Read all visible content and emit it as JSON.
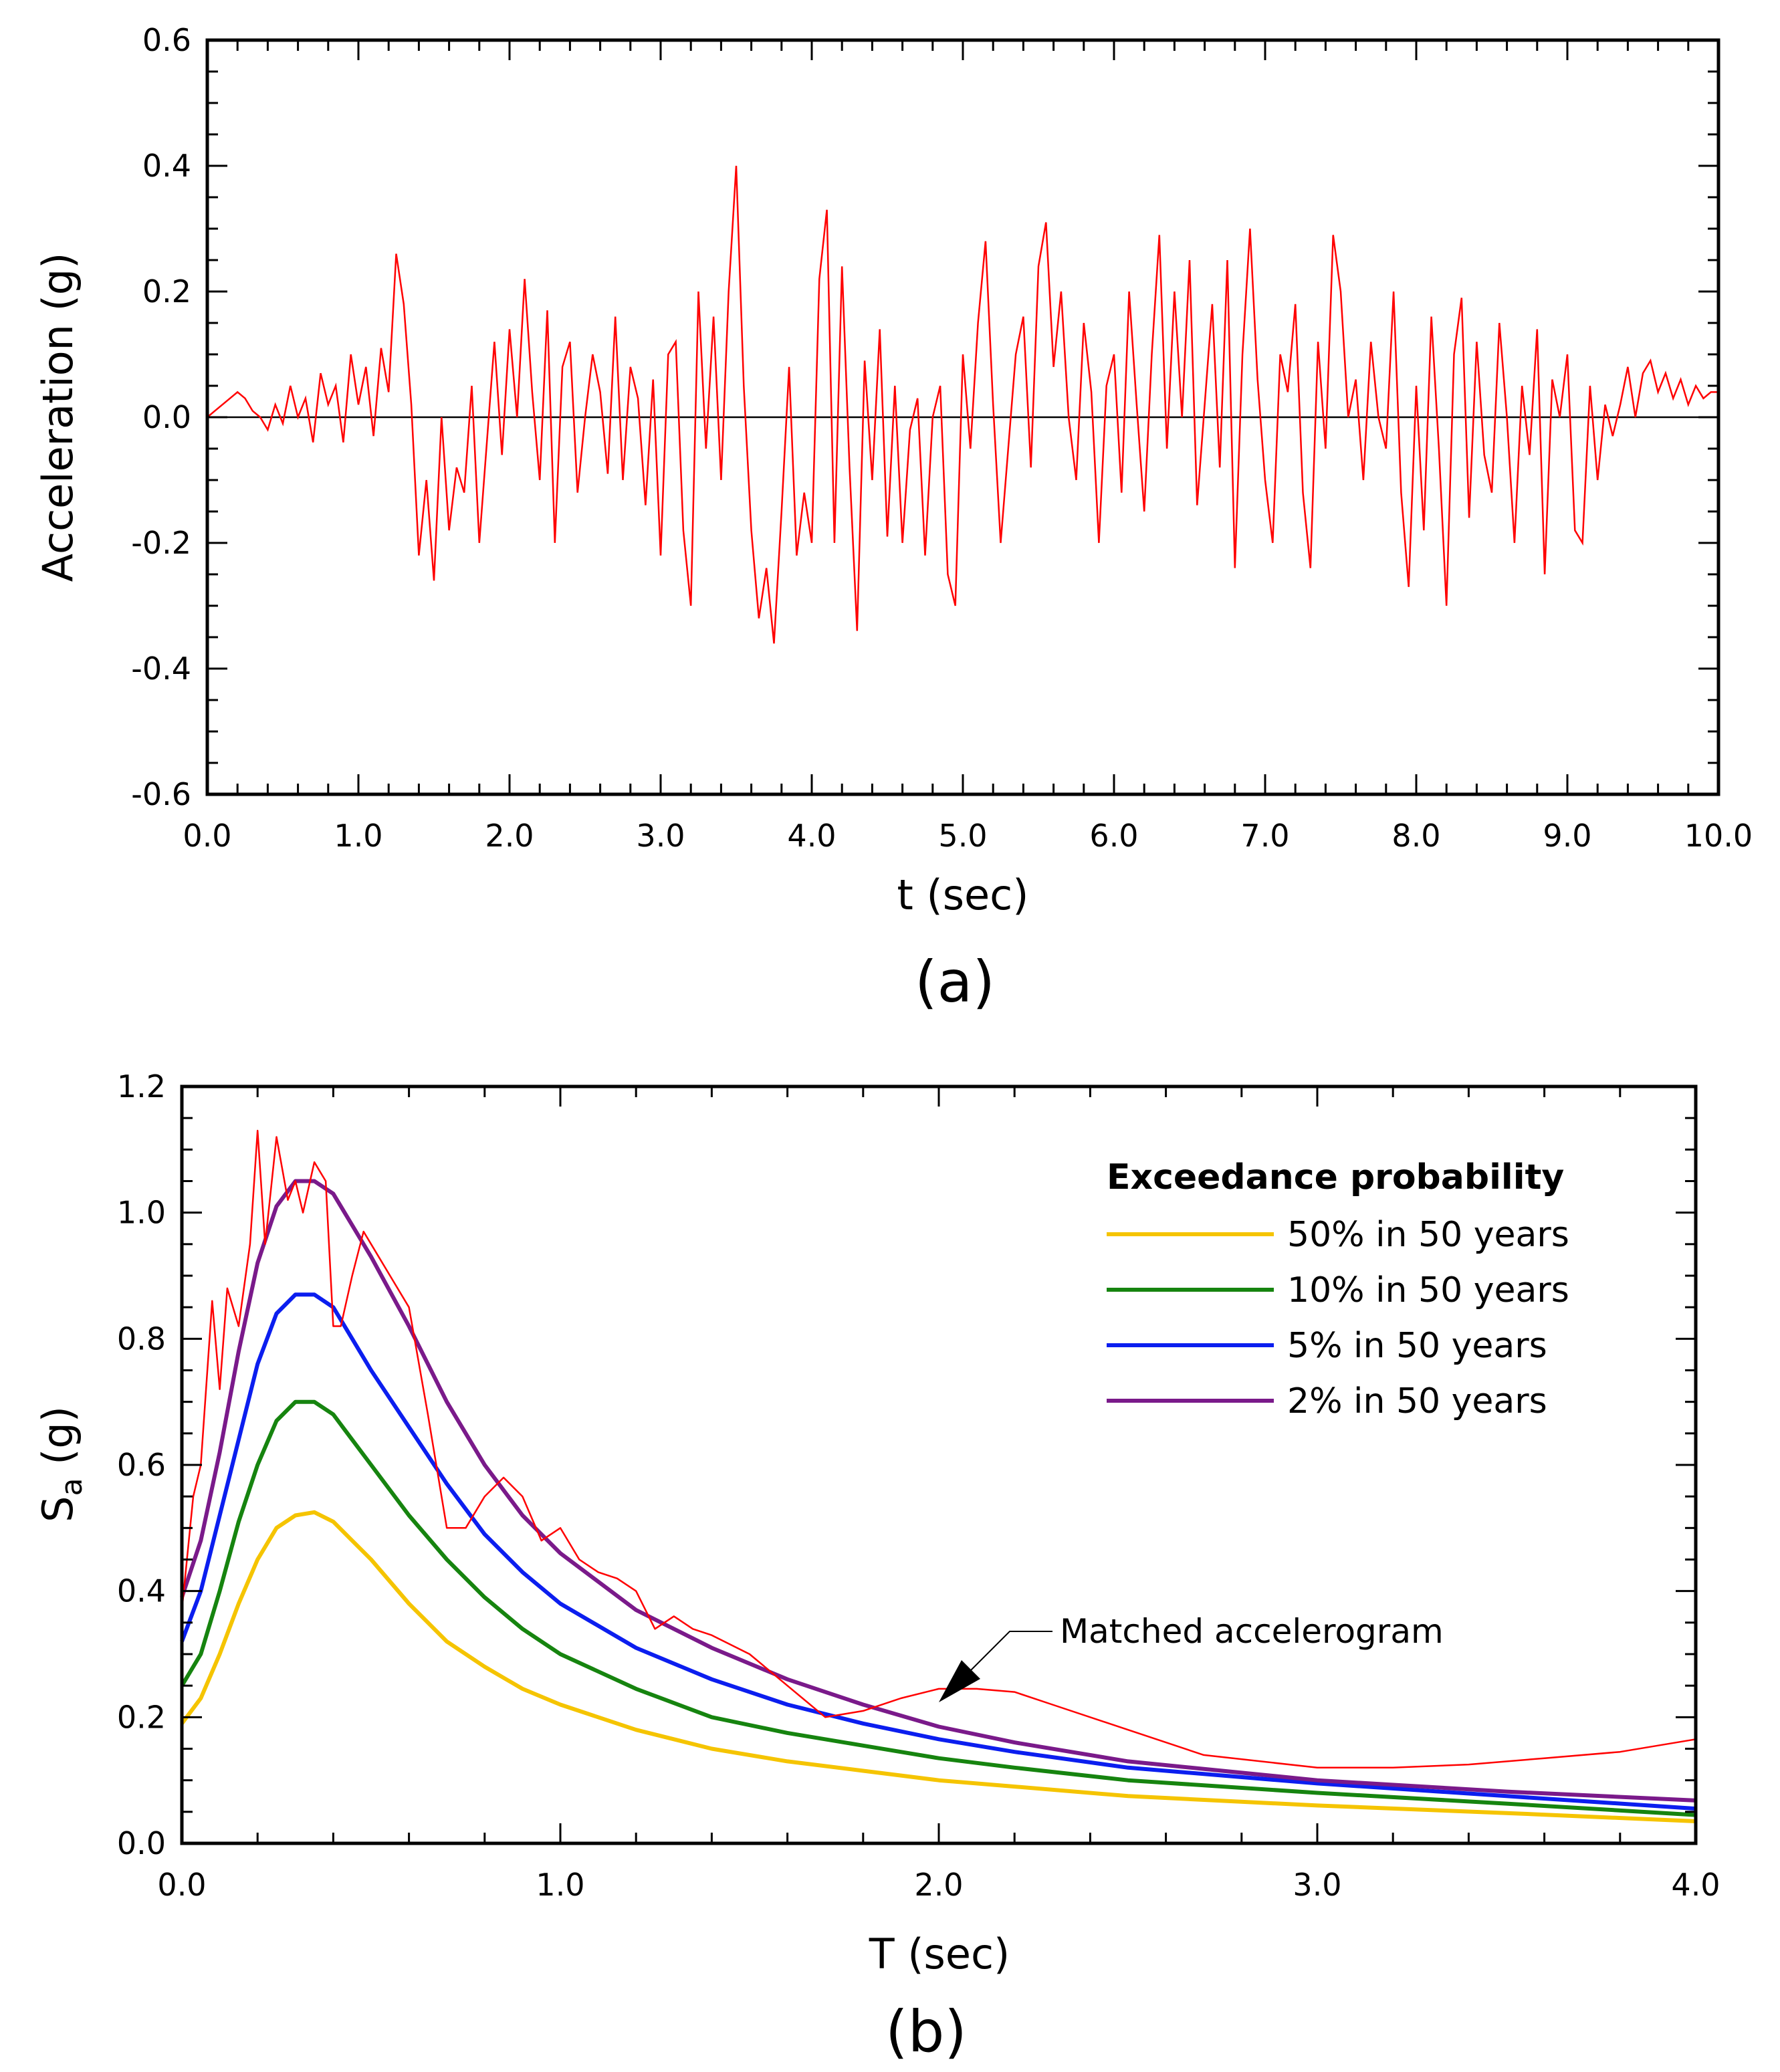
{
  "chart_data": [
    {
      "type": "line",
      "panel_label": "(a)",
      "title": "",
      "xlabel": "t (sec)",
      "ylabel": "Acceleration (g)",
      "xlim": [
        0,
        10
      ],
      "ylim": [
        -0.6,
        0.6
      ],
      "x_ticks": [
        "0.0",
        "1.0",
        "2.0",
        "3.0",
        "4.0",
        "5.0",
        "6.0",
        "7.0",
        "8.0",
        "9.0",
        "10.0"
      ],
      "y_ticks": [
        "-0.6",
        "-0.4",
        "-0.2",
        "0.0",
        "0.2",
        "0.4",
        "0.6"
      ],
      "zero_line": true,
      "series": [
        {
          "name": "Matched accelerogram",
          "color": "#ff0000",
          "x": [
            0.0,
            0.05,
            0.1,
            0.15,
            0.2,
            0.25,
            0.3,
            0.35,
            0.4,
            0.45,
            0.5,
            0.55,
            0.6,
            0.65,
            0.7,
            0.75,
            0.8,
            0.85,
            0.9,
            0.95,
            1.0,
            1.05,
            1.1,
            1.15,
            1.2,
            1.25,
            1.3,
            1.35,
            1.4,
            1.45,
            1.5,
            1.55,
            1.6,
            1.65,
            1.7,
            1.75,
            1.8,
            1.85,
            1.9,
            1.95,
            2.0,
            2.05,
            2.1,
            2.15,
            2.2,
            2.25,
            2.3,
            2.35,
            2.4,
            2.45,
            2.5,
            2.55,
            2.6,
            2.65,
            2.7,
            2.75,
            2.8,
            2.85,
            2.9,
            2.95,
            3.0,
            3.05,
            3.1,
            3.15,
            3.2,
            3.25,
            3.3,
            3.35,
            3.4,
            3.45,
            3.5,
            3.55,
            3.6,
            3.65,
            3.7,
            3.75,
            3.8,
            3.85,
            3.9,
            3.95,
            4.0,
            4.05,
            4.1,
            4.15,
            4.2,
            4.25,
            4.3,
            4.35,
            4.4,
            4.45,
            4.5,
            4.55,
            4.6,
            4.65,
            4.7,
            4.75,
            4.8,
            4.85,
            4.9,
            4.95,
            5.0,
            5.05,
            5.1,
            5.15,
            5.2,
            5.25,
            5.3,
            5.35,
            5.4,
            5.45,
            5.5,
            5.55,
            5.6,
            5.65,
            5.7,
            5.75,
            5.8,
            5.85,
            5.9,
            5.95,
            6.0,
            6.05,
            6.1,
            6.15,
            6.2,
            6.25,
            6.3,
            6.35,
            6.4,
            6.45,
            6.5,
            6.55,
            6.6,
            6.65,
            6.7,
            6.75,
            6.8,
            6.85,
            6.9,
            6.95,
            7.0,
            7.05,
            7.1,
            7.15,
            7.2,
            7.25,
            7.3,
            7.35,
            7.4,
            7.45,
            7.5,
            7.55,
            7.6,
            7.65,
            7.7,
            7.75,
            7.8,
            7.85,
            7.9,
            7.95,
            8.0,
            8.05,
            8.1,
            8.15,
            8.2,
            8.25,
            8.3,
            8.35,
            8.4,
            8.45,
            8.5,
            8.55,
            8.6,
            8.65,
            8.7,
            8.75,
            8.8,
            8.85,
            8.9,
            8.95,
            9.0,
            9.05,
            9.1,
            9.15,
            9.2,
            9.25,
            9.3,
            9.35,
            9.4,
            9.45,
            9.5,
            9.55,
            9.6,
            9.65,
            9.7,
            9.75,
            9.8,
            9.85,
            9.9,
            9.95,
            10.0
          ],
          "y": [
            0.0,
            0.01,
            0.02,
            0.03,
            0.04,
            0.03,
            0.01,
            0.0,
            -0.02,
            0.02,
            -0.01,
            0.05,
            0.0,
            0.03,
            -0.04,
            0.07,
            0.02,
            0.05,
            -0.04,
            0.1,
            0.02,
            0.08,
            -0.03,
            0.11,
            0.04,
            0.26,
            0.18,
            0.02,
            -0.22,
            -0.1,
            -0.26,
            0.0,
            -0.18,
            -0.08,
            -0.12,
            0.05,
            -0.2,
            -0.04,
            0.12,
            -0.06,
            0.14,
            0.0,
            0.22,
            0.04,
            -0.1,
            0.17,
            -0.2,
            0.08,
            0.12,
            -0.12,
            0.0,
            0.1,
            0.04,
            -0.09,
            0.16,
            -0.1,
            0.08,
            0.03,
            -0.14,
            0.06,
            -0.22,
            0.1,
            0.12,
            -0.18,
            -0.3,
            0.2,
            -0.05,
            0.16,
            -0.1,
            0.2,
            0.4,
            0.05,
            -0.18,
            -0.32,
            -0.24,
            -0.36,
            -0.15,
            0.08,
            -0.22,
            -0.12,
            -0.2,
            0.22,
            0.33,
            -0.2,
            0.24,
            -0.08,
            -0.34,
            0.09,
            -0.1,
            0.14,
            -0.19,
            0.05,
            -0.2,
            -0.02,
            0.03,
            -0.22,
            0.0,
            0.05,
            -0.25,
            -0.3,
            0.1,
            -0.05,
            0.15,
            0.28,
            0.02,
            -0.2,
            -0.05,
            0.1,
            0.16,
            -0.08,
            0.24,
            0.31,
            0.08,
            0.2,
            0.0,
            -0.1,
            0.15,
            0.04,
            -0.2,
            0.05,
            0.1,
            -0.12,
            0.2,
            0.02,
            -0.15,
            0.1,
            0.29,
            -0.05,
            0.2,
            0.0,
            0.25,
            -0.14,
            0.02,
            0.18,
            -0.08,
            0.25,
            -0.24,
            0.1,
            0.3,
            0.06,
            -0.1,
            -0.2,
            0.1,
            0.04,
            0.18,
            -0.12,
            -0.24,
            0.12,
            -0.05,
            0.29,
            0.2,
            0.0,
            0.06,
            -0.1,
            0.12,
            0.0,
            -0.05,
            0.2,
            -0.12,
            -0.27,
            0.05,
            -0.18,
            0.16,
            -0.05,
            -0.3,
            0.1,
            0.19,
            -0.16,
            0.12,
            -0.06,
            -0.12,
            0.15,
            0.0,
            -0.2,
            0.05,
            -0.06,
            0.14,
            -0.25,
            0.06,
            0.0,
            0.1,
            -0.18,
            -0.2,
            0.05,
            -0.1,
            0.02,
            -0.03,
            0.02,
            0.08,
            0.0,
            0.07,
            0.09,
            0.04,
            0.07,
            0.03,
            0.06,
            0.02,
            0.05,
            0.03,
            0.04,
            0.04
          ]
        }
      ]
    },
    {
      "type": "line",
      "panel_label": "(b)",
      "title": "",
      "xlabel": "T (sec)",
      "ylabel_main": "S",
      "ylabel_sub": "a",
      "ylabel_unit": " (g)",
      "xlim": [
        0,
        4
      ],
      "ylim": [
        0,
        1.2
      ],
      "x_ticks": [
        "0.0",
        "1.0",
        "2.0",
        "3.0",
        "4.0"
      ],
      "y_ticks": [
        "0.0",
        "0.2",
        "0.4",
        "0.6",
        "0.8",
        "1.0",
        "1.2"
      ],
      "legend_title": "Exceedance probability",
      "legend_position": "top-right",
      "annotation": "Matched accelerogram",
      "x": [
        0.0,
        0.05,
        0.1,
        0.15,
        0.2,
        0.25,
        0.3,
        0.35,
        0.4,
        0.45,
        0.5,
        0.6,
        0.7,
        0.8,
        0.9,
        1.0,
        1.2,
        1.4,
        1.6,
        1.8,
        2.0,
        2.2,
        2.5,
        3.0,
        3.5,
        4.0
      ],
      "series": [
        {
          "name": "50% in 50 years",
          "color": "#f5c400",
          "values": [
            0.19,
            0.23,
            0.3,
            0.38,
            0.45,
            0.5,
            0.52,
            0.525,
            0.51,
            0.48,
            0.45,
            0.38,
            0.32,
            0.28,
            0.245,
            0.22,
            0.18,
            0.15,
            0.13,
            0.115,
            0.1,
            0.09,
            0.075,
            0.06,
            0.048,
            0.035
          ]
        },
        {
          "name": "10% in 50 years",
          "color": "#16840f",
          "values": [
            0.25,
            0.3,
            0.4,
            0.51,
            0.6,
            0.67,
            0.7,
            0.7,
            0.68,
            0.64,
            0.6,
            0.52,
            0.45,
            0.39,
            0.34,
            0.3,
            0.245,
            0.2,
            0.175,
            0.155,
            0.135,
            0.12,
            0.1,
            0.08,
            0.063,
            0.045
          ]
        },
        {
          "name": "5% in 50 years",
          "color": "#0b1eef",
          "values": [
            0.32,
            0.4,
            0.52,
            0.64,
            0.76,
            0.84,
            0.87,
            0.87,
            0.85,
            0.8,
            0.75,
            0.66,
            0.57,
            0.49,
            0.43,
            0.38,
            0.31,
            0.26,
            0.22,
            0.19,
            0.165,
            0.145,
            0.12,
            0.095,
            0.075,
            0.055
          ]
        },
        {
          "name": "2% in 50 years",
          "color": "#7a1a8a",
          "values": [
            0.39,
            0.48,
            0.62,
            0.78,
            0.92,
            1.01,
            1.05,
            1.05,
            1.03,
            0.98,
            0.93,
            0.82,
            0.7,
            0.6,
            0.52,
            0.46,
            0.37,
            0.31,
            0.26,
            0.22,
            0.185,
            0.16,
            0.13,
            0.1,
            0.082,
            0.068
          ]
        },
        {
          "name": "Matched accelerogram",
          "color": "#ff0000",
          "show_in_legend": false,
          "x": [
            0.0,
            0.03,
            0.05,
            0.08,
            0.1,
            0.12,
            0.15,
            0.18,
            0.2,
            0.22,
            0.25,
            0.28,
            0.3,
            0.32,
            0.35,
            0.38,
            0.4,
            0.42,
            0.45,
            0.48,
            0.5,
            0.55,
            0.6,
            0.65,
            0.7,
            0.75,
            0.8,
            0.85,
            0.9,
            0.95,
            1.0,
            1.05,
            1.1,
            1.15,
            1.2,
            1.25,
            1.3,
            1.35,
            1.4,
            1.5,
            1.6,
            1.7,
            1.8,
            1.9,
            2.0,
            2.1,
            2.2,
            2.3,
            2.5,
            2.7,
            3.0,
            3.2,
            3.4,
            3.6,
            3.8,
            4.0
          ],
          "values": [
            0.37,
            0.55,
            0.6,
            0.86,
            0.72,
            0.88,
            0.82,
            0.95,
            1.13,
            0.95,
            1.12,
            1.02,
            1.05,
            1.0,
            1.08,
            1.05,
            0.82,
            0.82,
            0.9,
            0.97,
            0.95,
            0.9,
            0.85,
            0.68,
            0.5,
            0.5,
            0.55,
            0.58,
            0.55,
            0.48,
            0.5,
            0.45,
            0.43,
            0.42,
            0.4,
            0.34,
            0.36,
            0.34,
            0.33,
            0.3,
            0.25,
            0.2,
            0.21,
            0.23,
            0.245,
            0.245,
            0.24,
            0.22,
            0.18,
            0.14,
            0.12,
            0.12,
            0.125,
            0.135,
            0.145,
            0.165
          ]
        }
      ]
    }
  ]
}
